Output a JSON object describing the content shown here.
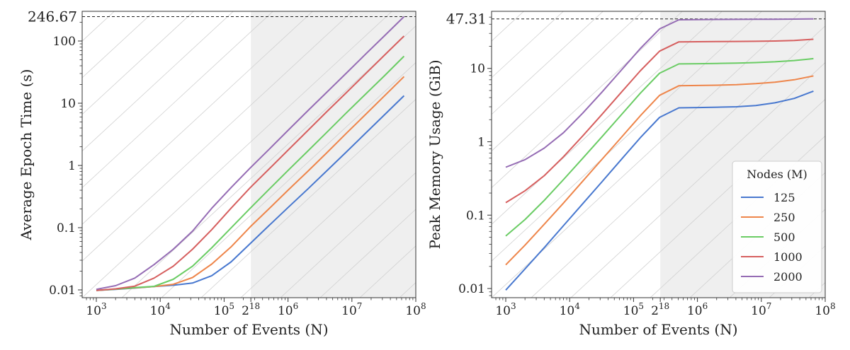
{
  "chart_data": [
    {
      "type": "line",
      "xlabel": "Number of Events (N)",
      "ylabel": "Average Epoch Time (s)",
      "xscale": "log",
      "yscale": "log",
      "xlim": [
        600,
        100000000
      ],
      "ylim": [
        0.0075,
        300
      ],
      "xticks": [
        {
          "base": "10",
          "exp": "3",
          "value": 1000
        },
        {
          "base": "10",
          "exp": "4",
          "value": 10000
        },
        {
          "base": "10",
          "exp": "5",
          "value": 100000
        },
        {
          "base": "2",
          "exp": "18",
          "value": 262144
        },
        {
          "base": "10",
          "exp": "6",
          "value": 1000000
        },
        {
          "base": "10",
          "exp": "7",
          "value": 10000000
        },
        {
          "base": "10",
          "exp": "8",
          "value": 100000000
        }
      ],
      "yticks": [
        {
          "label": "0.01",
          "value": 0.01
        },
        {
          "label": "0.1",
          "value": 0.1
        },
        {
          "label": "1",
          "value": 1
        },
        {
          "label": "10",
          "value": 10
        },
        {
          "label": "100",
          "value": 100
        }
      ],
      "reference_line": {
        "label": "246.67",
        "value": 246.67
      },
      "shaded_region": {
        "from": 262144
      },
      "grid": "diagonal",
      "x": [
        1000,
        2000,
        4000,
        8000,
        16000,
        32000,
        64000,
        128000,
        256000,
        512000,
        1024000,
        2048000,
        4096000,
        8192000,
        16384000,
        32768000,
        65536000
      ],
      "series": [
        {
          "color": "#4878cf",
          "values": [
            0.0098,
            0.0102,
            0.0107,
            0.0113,
            0.0119,
            0.0129,
            0.0169,
            0.0281,
            0.0555,
            0.11,
            0.215,
            0.42,
            0.83,
            1.65,
            3.3,
            6.6,
            13.2
          ]
        },
        {
          "color": "#ee854a",
          "values": [
            0.0098,
            0.0103,
            0.0108,
            0.0113,
            0.0123,
            0.0158,
            0.026,
            0.049,
            0.103,
            0.205,
            0.41,
            0.81,
            1.62,
            3.3,
            6.6,
            13.3,
            26.8
          ]
        },
        {
          "color": "#6acc64",
          "values": [
            0.0098,
            0.0103,
            0.0109,
            0.0114,
            0.0148,
            0.024,
            0.0475,
            0.099,
            0.205,
            0.42,
            0.85,
            1.71,
            3.45,
            7.0,
            14.0,
            28.0,
            57.0
          ]
        },
        {
          "color": "#d65f5f",
          "values": [
            0.0098,
            0.0104,
            0.0115,
            0.0155,
            0.024,
            0.045,
            0.093,
            0.205,
            0.44,
            0.89,
            1.8,
            3.65,
            7.4,
            14.8,
            29.8,
            60.0,
            120.0
          ]
        },
        {
          "color": "#956cb4",
          "values": [
            0.0102,
            0.0117,
            0.0155,
            0.0255,
            0.045,
            0.088,
            0.205,
            0.44,
            0.91,
            1.84,
            3.75,
            7.6,
            15.2,
            30.5,
            61.5,
            123.0,
            246.67
          ]
        }
      ]
    },
    {
      "type": "line",
      "xlabel": "Number of Events (N)",
      "ylabel": "Peak Memory Usage (GiB)",
      "xscale": "log",
      "yscale": "log",
      "xlim": [
        600,
        100000000
      ],
      "ylim": [
        0.0075,
        60
      ],
      "xticks": [
        {
          "base": "10",
          "exp": "3",
          "value": 1000
        },
        {
          "base": "10",
          "exp": "4",
          "value": 10000
        },
        {
          "base": "10",
          "exp": "5",
          "value": 100000
        },
        {
          "base": "2",
          "exp": "18",
          "value": 262144
        },
        {
          "base": "10",
          "exp": "6",
          "value": 1000000
        },
        {
          "base": "10",
          "exp": "7",
          "value": 10000000
        },
        {
          "base": "10",
          "exp": "8",
          "value": 100000000
        }
      ],
      "yticks": [
        {
          "label": "0.01",
          "value": 0.01
        },
        {
          "label": "0.1",
          "value": 0.1
        },
        {
          "label": "1",
          "value": 1
        },
        {
          "label": "10",
          "value": 10
        }
      ],
      "reference_line": {
        "label": "47.31",
        "value": 47.31
      },
      "shaded_region": {
        "from": 262144
      },
      "grid": "diagonal",
      "legend": {
        "title": "Nodes (M)",
        "placement": "lower-right",
        "items": [
          "125",
          "250",
          "500",
          "1000",
          "2000"
        ]
      },
      "x": [
        1000,
        2000,
        4000,
        8000,
        16000,
        32000,
        64000,
        128000,
        256000,
        512000,
        1024000,
        2048000,
        4096000,
        8192000,
        16384000,
        32768000,
        65536000
      ],
      "series": [
        {
          "name": "125",
          "color": "#4878cf",
          "values": [
            0.0095,
            0.0185,
            0.036,
            0.072,
            0.143,
            0.285,
            0.57,
            1.14,
            2.15,
            2.9,
            2.93,
            2.96,
            3.0,
            3.12,
            3.4,
            3.9,
            4.9
          ]
        },
        {
          "name": "250",
          "color": "#ee854a",
          "values": [
            0.021,
            0.039,
            0.075,
            0.146,
            0.29,
            0.575,
            1.14,
            2.27,
            4.3,
            5.8,
            5.85,
            5.9,
            6.0,
            6.2,
            6.5,
            7.0,
            7.9
          ]
        },
        {
          "name": "500",
          "color": "#6acc64",
          "values": [
            0.052,
            0.087,
            0.159,
            0.305,
            0.595,
            1.17,
            2.32,
            4.6,
            8.6,
            11.5,
            11.6,
            11.7,
            11.8,
            12.0,
            12.3,
            12.8,
            13.6
          ]
        },
        {
          "name": "1000",
          "color": "#d65f5f",
          "values": [
            0.148,
            0.215,
            0.345,
            0.625,
            1.2,
            2.36,
            4.7,
            9.3,
            17.2,
            23.0,
            23.1,
            23.2,
            23.3,
            23.4,
            23.6,
            24.0,
            25.0
          ]
        },
        {
          "name": "2000",
          "color": "#956cb4",
          "values": [
            0.45,
            0.57,
            0.82,
            1.33,
            2.45,
            4.75,
            9.4,
            18.7,
            34.5,
            46.0,
            46.3,
            46.5,
            46.6,
            46.7,
            46.8,
            47.0,
            47.31
          ]
        }
      ]
    }
  ]
}
